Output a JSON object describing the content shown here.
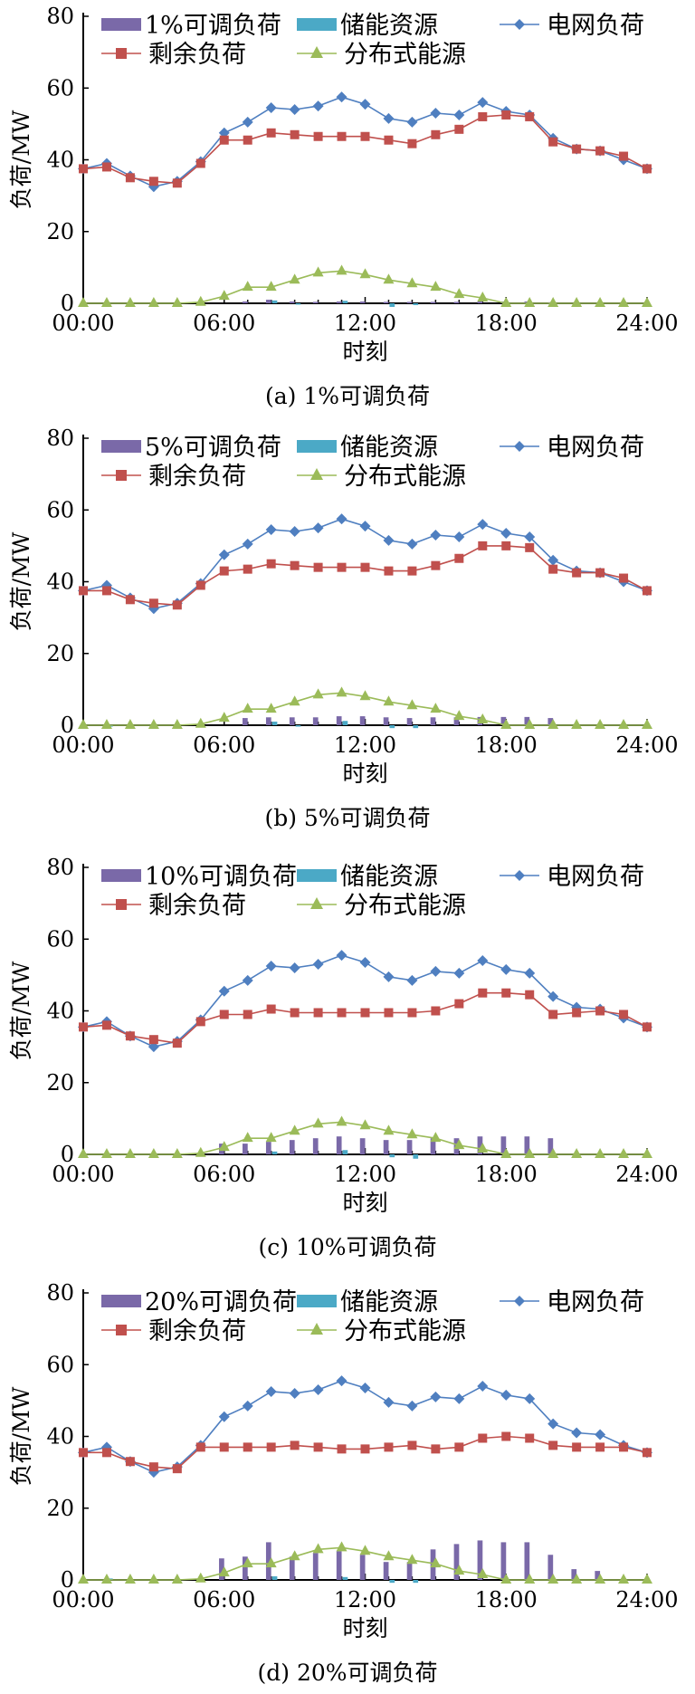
{
  "colors": {
    "adjustable": "#7a69a8",
    "storage": "#4ba9c6",
    "grid": "#4f7fc0",
    "residual": "#c0504d",
    "distributed": "#9bbb59"
  },
  "legend_icons": {
    "adjustable": "bar-swatch",
    "storage": "bar-swatch",
    "grid": "line-diamond-marker",
    "residual": "line-square-marker",
    "distributed": "line-triangle-marker"
  },
  "chart_data": [
    {
      "type": "line+bar",
      "caption": "(a) 1%可调负荷",
      "xlabel": "时刻",
      "ylabel": "负荷/MW",
      "ylim": [
        0,
        80
      ],
      "yticks": [
        "0",
        "20",
        "40",
        "60",
        "80"
      ],
      "xlim": [
        0,
        24
      ],
      "xticks": [
        "00:00",
        "06:00",
        "12:00",
        "18:00",
        "24:00"
      ],
      "legend": [
        "1%可调负荷",
        "储能资源",
        "电网负荷",
        "剩余负荷",
        "分布式能源"
      ],
      "hours": [
        0,
        1,
        2,
        3,
        4,
        5,
        6,
        7,
        8,
        9,
        10,
        11,
        12,
        13,
        14,
        15,
        16,
        17,
        18,
        19,
        20,
        21,
        22,
        23,
        24
      ],
      "series": [
        {
          "name": "电网负荷",
          "values": [
            37.5,
            39,
            35.5,
            32.5,
            34,
            39.5,
            47.5,
            50.5,
            54.5,
            54,
            55,
            57.5,
            55.5,
            51.5,
            50.5,
            53,
            52.5,
            56,
            53.5,
            52.5,
            46,
            43,
            42.5,
            40,
            37.5
          ]
        },
        {
          "name": "剩余负荷",
          "values": [
            37.5,
            38,
            35,
            34,
            33.5,
            39,
            45.5,
            45.5,
            47.5,
            47,
            46.5,
            46.5,
            46.5,
            45.5,
            44.5,
            47,
            48.5,
            52,
            52.5,
            52,
            45,
            43,
            42.5,
            41,
            37.5
          ]
        },
        {
          "name": "分布式能源",
          "values": [
            0,
            0,
            0,
            0,
            0,
            0.3,
            2,
            4.5,
            4.5,
            6.5,
            8.5,
            9,
            8,
            6.5,
            5.5,
            4.5,
            2.5,
            1.5,
            0,
            0,
            0,
            0,
            0,
            0,
            0
          ]
        },
        {
          "name": "1%可调负荷",
          "values": [
            0,
            0,
            0,
            0,
            0,
            0,
            0,
            0.5,
            1,
            0.5,
            0.4,
            0.5,
            0.5,
            0.4,
            0.4,
            0.4,
            0.4,
            0.5,
            0.5,
            0.5,
            0.3,
            0,
            0,
            0,
            0
          ]
        },
        {
          "name": "储能资源",
          "values": [
            0,
            0,
            0,
            0,
            0,
            0,
            0,
            0,
            0.8,
            -0.3,
            0,
            0.7,
            0,
            -1,
            -0.5,
            0,
            0,
            0,
            0,
            0,
            0,
            0,
            0,
            0,
            0
          ]
        }
      ]
    },
    {
      "type": "line+bar",
      "caption": "(b) 5%可调负荷",
      "xlabel": "时刻",
      "ylabel": "负荷/MW",
      "ylim": [
        0,
        80
      ],
      "yticks": [
        "0",
        "20",
        "40",
        "60",
        "80"
      ],
      "xlim": [
        0,
        24
      ],
      "xticks": [
        "00:00",
        "06:00",
        "12:00",
        "18:00",
        "24:00"
      ],
      "legend": [
        "5%可调负荷",
        "储能资源",
        "电网负荷",
        "剩余负荷",
        "分布式能源"
      ],
      "hours": [
        0,
        1,
        2,
        3,
        4,
        5,
        6,
        7,
        8,
        9,
        10,
        11,
        12,
        13,
        14,
        15,
        16,
        17,
        18,
        19,
        20,
        21,
        22,
        23,
        24
      ],
      "series": [
        {
          "name": "电网负荷",
          "values": [
            37.5,
            39,
            35.5,
            32.5,
            34,
            39.5,
            47.5,
            50.5,
            54.5,
            54,
            55,
            57.5,
            55.5,
            51.5,
            50.5,
            53,
            52.5,
            56,
            53.5,
            52.5,
            46,
            43,
            42.5,
            40,
            37.5
          ]
        },
        {
          "name": "剩余负荷",
          "values": [
            37.5,
            37.5,
            35,
            34,
            33.5,
            39,
            43,
            43.5,
            45,
            44.5,
            44,
            44,
            44,
            43,
            43,
            44.5,
            46.5,
            50,
            50,
            49.5,
            43.5,
            42.5,
            42.5,
            41,
            37.5
          ]
        },
        {
          "name": "分布式能源",
          "values": [
            0,
            0,
            0,
            0,
            0,
            0.3,
            2,
            4.5,
            4.5,
            6.5,
            8.5,
            9,
            8,
            6.5,
            5.5,
            4.5,
            2.5,
            1.5,
            0,
            0,
            0,
            0,
            0,
            0,
            0
          ]
        },
        {
          "name": "5%可调负荷",
          "values": [
            0,
            0,
            0,
            0,
            0,
            0,
            0,
            2,
            2.2,
            2.2,
            2.2,
            2.5,
            2.5,
            2.2,
            2,
            2.2,
            2.2,
            2.3,
            2.3,
            2.3,
            2,
            0,
            0,
            0,
            0
          ]
        },
        {
          "name": "储能资源",
          "values": [
            0,
            -0.4,
            0,
            0,
            0,
            0,
            0,
            0,
            1,
            -0.4,
            0,
            1.2,
            0,
            -0.8,
            -0.8,
            0,
            0,
            0,
            0,
            0,
            0,
            0,
            0,
            0,
            0
          ]
        }
      ]
    },
    {
      "type": "line+bar",
      "caption": "(c) 10%可调负荷",
      "xlabel": "时刻",
      "ylabel": "负荷/MW",
      "ylim": [
        0,
        80
      ],
      "yticks": [
        "0",
        "20",
        "40",
        "60",
        "80"
      ],
      "xlim": [
        0,
        24
      ],
      "xticks": [
        "00:00",
        "06:00",
        "12:00",
        "18:00",
        "24:00"
      ],
      "legend": [
        "10%可调负荷",
        "储能资源",
        "电网负荷",
        "剩余负荷",
        "分布式能源"
      ],
      "hours": [
        0,
        1,
        2,
        3,
        4,
        5,
        6,
        7,
        8,
        9,
        10,
        11,
        12,
        13,
        14,
        15,
        16,
        17,
        18,
        19,
        20,
        21,
        22,
        23,
        24
      ],
      "series": [
        {
          "name": "电网负荷",
          "values": [
            35.5,
            37,
            33,
            30,
            31.5,
            37.5,
            45.5,
            48.5,
            52.5,
            52,
            53,
            55.5,
            53.5,
            49.5,
            48.5,
            51,
            50.5,
            54,
            51.5,
            50.5,
            44,
            41,
            40.5,
            38,
            35.5
          ]
        },
        {
          "name": "剩余负荷",
          "values": [
            35.5,
            36,
            33,
            32,
            31,
            37,
            39,
            39,
            40.5,
            39.5,
            39.5,
            39.5,
            39.5,
            39.5,
            39.5,
            40,
            42,
            45,
            45,
            44.5,
            39,
            39.5,
            40,
            39,
            35.5
          ]
        },
        {
          "name": "分布式能源",
          "values": [
            0,
            0,
            0,
            0,
            0,
            0.3,
            2,
            4.5,
            4.5,
            6.5,
            8.5,
            9,
            8,
            6.5,
            5.5,
            4.5,
            2.5,
            1.5,
            0,
            0,
            0,
            0,
            0,
            0,
            0
          ]
        },
        {
          "name": "10%可调负荷",
          "values": [
            0,
            0,
            0,
            0,
            0,
            0,
            3,
            3,
            3.5,
            4,
            4.5,
            5,
            4.5,
            4,
            4,
            4.5,
            4.5,
            5,
            5,
            5,
            4.5,
            0,
            0,
            0,
            0
          ]
        },
        {
          "name": "储能资源",
          "values": [
            0,
            0,
            0,
            0,
            0,
            0,
            0,
            0,
            0.8,
            0,
            0,
            1.2,
            0,
            -0.8,
            -1.2,
            0,
            0,
            0,
            0,
            0,
            0,
            0,
            0,
            0,
            0
          ]
        }
      ]
    },
    {
      "type": "line+bar",
      "caption": "(d) 20%可调负荷",
      "xlabel": "时刻",
      "ylabel": "负荷/MW",
      "ylim": [
        0,
        80
      ],
      "yticks": [
        "0",
        "20",
        "40",
        "60",
        "80"
      ],
      "xlim": [
        0,
        24
      ],
      "xticks": [
        "00:00",
        "06:00",
        "12:00",
        "18:00",
        "24:00"
      ],
      "legend": [
        "20%可调负荷",
        "储能资源",
        "电网负荷",
        "剩余负荷",
        "分布式能源"
      ],
      "hours": [
        0,
        1,
        2,
        3,
        4,
        5,
        6,
        7,
        8,
        9,
        10,
        11,
        12,
        13,
        14,
        15,
        16,
        17,
        18,
        19,
        20,
        21,
        22,
        23,
        24
      ],
      "series": [
        {
          "name": "电网负荷",
          "values": [
            35.5,
            37,
            33,
            30,
            31.5,
            37.5,
            45.5,
            48.5,
            52.5,
            52,
            53,
            55.5,
            53.5,
            49.5,
            48.5,
            51,
            50.5,
            54,
            51.5,
            50.5,
            43.5,
            41,
            40.5,
            37.5,
            35.5
          ]
        },
        {
          "name": "剩余负荷",
          "values": [
            35.5,
            35.5,
            33,
            31.5,
            31,
            37,
            37,
            37,
            37,
            37.5,
            37,
            36.5,
            36.5,
            37,
            37.5,
            36.5,
            37,
            39.5,
            40,
            39.5,
            37.5,
            37,
            37,
            37,
            35.5
          ]
        },
        {
          "name": "分布式能源",
          "values": [
            0,
            0,
            0,
            0,
            0,
            0.3,
            2,
            4.5,
            4.5,
            6.5,
            8.5,
            9,
            8,
            6.5,
            5.5,
            4.5,
            2.5,
            1.5,
            0,
            0,
            0,
            0,
            0,
            0,
            0
          ]
        },
        {
          "name": "20%可调负荷",
          "values": [
            0,
            0,
            0,
            0,
            0,
            0,
            6,
            6.5,
            10.5,
            6.5,
            7.5,
            8,
            7,
            5,
            5,
            8.5,
            10,
            11,
            10.5,
            10.5,
            7,
            3,
            2.5,
            0,
            0
          ]
        },
        {
          "name": "储能资源",
          "values": [
            0,
            0.4,
            0,
            0,
            0,
            0,
            0,
            0,
            1,
            0,
            0,
            0.8,
            0,
            -0.8,
            -0.8,
            0,
            0,
            0,
            0,
            0,
            0,
            0,
            0,
            0,
            0
          ]
        }
      ]
    }
  ]
}
